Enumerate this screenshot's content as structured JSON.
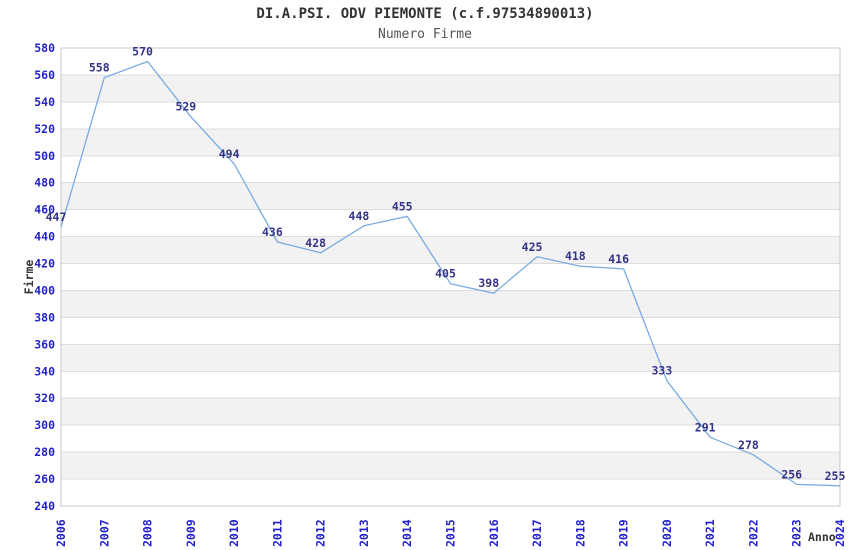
{
  "title": "DI.A.PSI. ODV PIEMONTE (c.f.97534890013)",
  "subtitle": "Numero Firme",
  "chart_data": {
    "type": "line",
    "x": [
      "2006",
      "2007",
      "2008",
      "2009",
      "2010",
      "2011",
      "2012",
      "2013",
      "2014",
      "2015",
      "2016",
      "2017",
      "2018",
      "2019",
      "2020",
      "2021",
      "2022",
      "2023",
      "2024"
    ],
    "series": [
      {
        "name": "Numero Firme",
        "values": [
          447,
          558,
          570,
          529,
          494,
          436,
          428,
          448,
          455,
          405,
          398,
          425,
          418,
          416,
          333,
          291,
          278,
          256,
          255
        ]
      }
    ],
    "title": "DI.A.PSI. ODV PIEMONTE (c.f.97534890013)",
    "subtitle": "Numero Firme",
    "xlabel": "Anno",
    "ylabel": "Firme",
    "ylim": [
      240,
      580
    ],
    "ytick_step": 20,
    "yticks": [
      240,
      260,
      280,
      300,
      320,
      340,
      360,
      380,
      400,
      420,
      440,
      460,
      480,
      500,
      520,
      540,
      560,
      580
    ],
    "grid": "horizontal gridlines with alternating shaded bands",
    "legend_position": "none",
    "data_labels_shown": true
  },
  "colors": {
    "line": "#7aabe0",
    "tick_label": "#2222cc",
    "data_label": "#333388",
    "band_fill": "#f2f2f2",
    "gridline": "#dddddd",
    "plot_border": "#c8c8c8",
    "title": "#333333",
    "subtitle": "#555555",
    "axis_title": "#333333",
    "background": "#ffffff"
  }
}
